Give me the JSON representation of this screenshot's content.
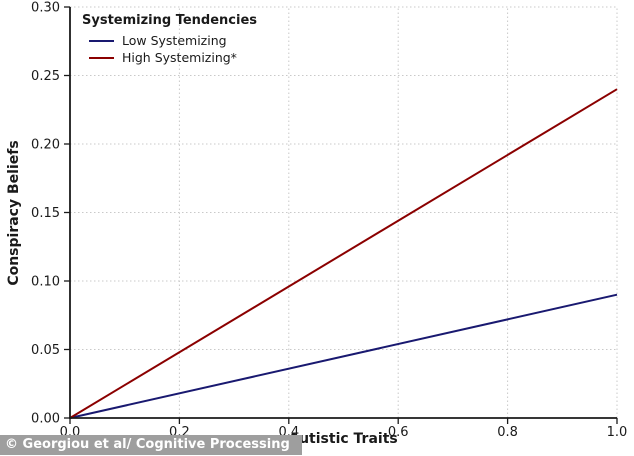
{
  "chart_data": {
    "type": "line",
    "title": "",
    "xlabel": "Autistic Traits",
    "ylabel": "Conspiracy Beliefs",
    "xlim": [
      0.0,
      1.0
    ],
    "ylim": [
      0.0,
      0.3
    ],
    "x_ticks": [
      0.0,
      0.2,
      0.4,
      0.6,
      0.8,
      1.0
    ],
    "x_tick_labels": [
      "0.0",
      "0.2",
      "0.4",
      "0.6",
      "0.8",
      "1.0"
    ],
    "y_ticks": [
      0.0,
      0.05,
      0.1,
      0.15,
      0.2,
      0.25,
      0.3
    ],
    "y_tick_labels": [
      "0.00",
      "0.05",
      "0.10",
      "0.15",
      "0.20",
      "0.25",
      "0.30"
    ],
    "grid": true,
    "grid_style": "dotted",
    "legend": {
      "title": "Systemizing Tendencies",
      "position": "upper-left"
    },
    "series": [
      {
        "name": "Low Systemizing",
        "color": "#191970",
        "x": [
          0.0,
          1.0
        ],
        "y": [
          0.0,
          0.09
        ]
      },
      {
        "name": "High Systemizing*",
        "color": "#8B0000",
        "x": [
          0.0,
          1.0
        ],
        "y": [
          0.0,
          0.24
        ]
      }
    ]
  },
  "caption": "© Georgiou et al/ Cognitive Processing",
  "colors": {
    "background": "#ffffff",
    "axis": "#1a1a1a",
    "grid": "#c9c9c9",
    "tick_label": "#1a1a1a",
    "caption_bg": "#9e9e9e",
    "caption_text": "#ffffff",
    "low_systemizing": "#191970",
    "high_systemizing": "#8B0000"
  }
}
